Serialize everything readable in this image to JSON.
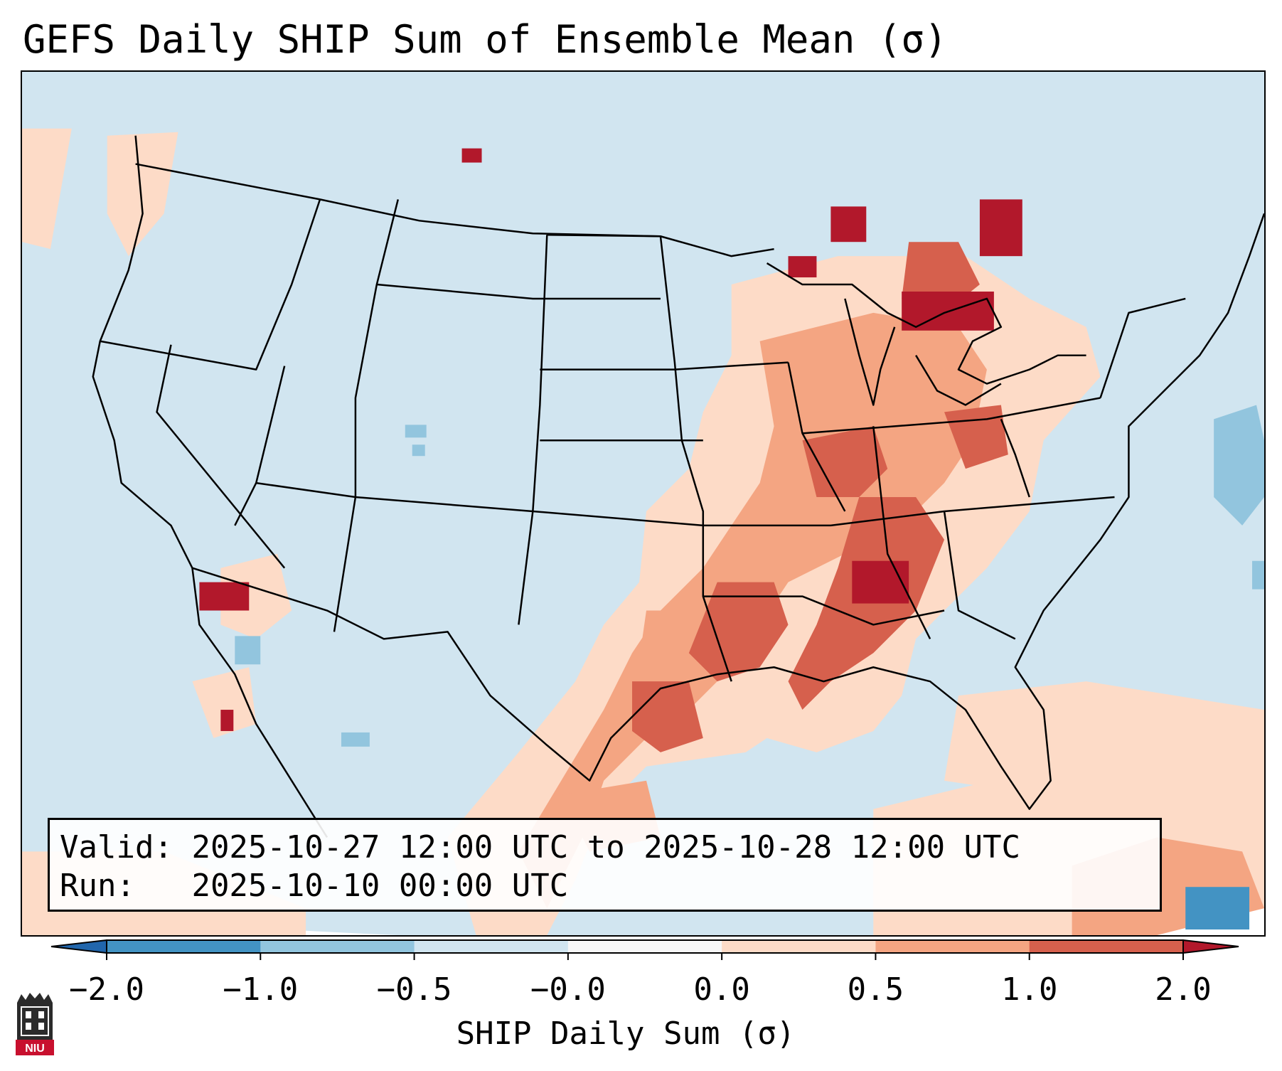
{
  "title": "GEFS Daily SHIP Sum of Ensemble Mean (σ)",
  "info": {
    "valid_label": "Valid:",
    "valid_value": "2025-10-27 12:00 UTC to 2025-10-28 12:00 UTC",
    "run_label": "Run:",
    "run_value": "2025-10-10 00:00 UTC"
  },
  "colorbar": {
    "label": "SHIP Daily Sum (σ)",
    "ticks": [
      "−2.0",
      "−1.0",
      "−0.5",
      "−0.0",
      "0.0",
      "0.5",
      "1.0",
      "2.0"
    ],
    "colors": [
      "#2166ac",
      "#4393c3",
      "#92c5de",
      "#d1e5f0",
      "#f7f7f7",
      "#fddbc7",
      "#f4a582",
      "#d6604d",
      "#b2182b"
    ],
    "extend": "both"
  },
  "logo": {
    "text": "NIU",
    "icon": "niu-tower-icon"
  },
  "map": {
    "domain": "Contiguous United States, northern Mexico, southern Canada, Gulf of Mexico",
    "field": "SHIP daily sum anomaly (σ)",
    "colors": {
      "background": "#d1e5f0",
      "light_positive": "#fddbc7",
      "mid_positive": "#f4a582",
      "strong_positive": "#d6604d",
      "max_positive": "#b2182b",
      "light_negative": "#92c5de",
      "mid_negative": "#4393c3"
    }
  }
}
